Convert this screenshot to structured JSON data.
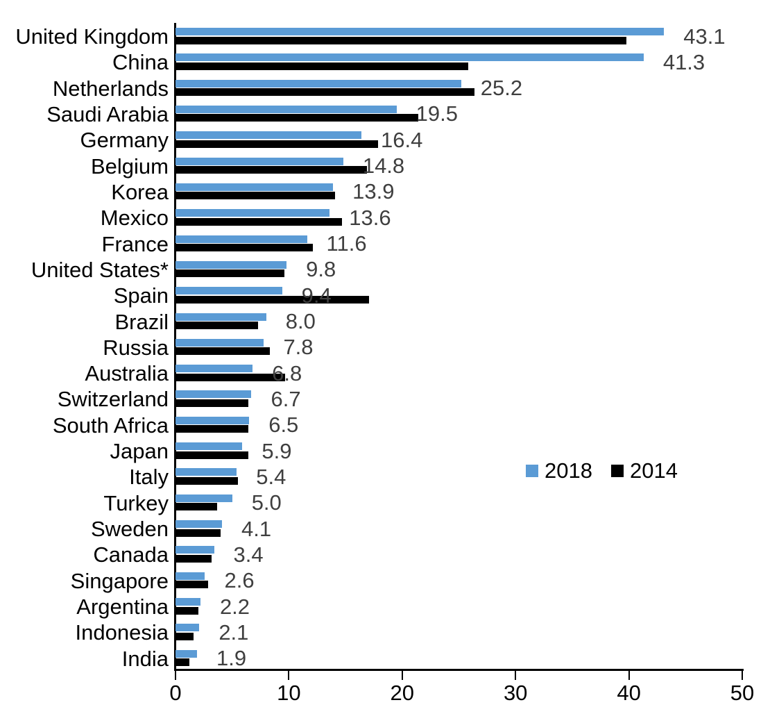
{
  "chart_data": {
    "type": "bar",
    "orientation": "horizontal",
    "title": "",
    "xlabel": "",
    "ylabel": "",
    "xlim": [
      0,
      50
    ],
    "x_ticks": [
      0,
      10,
      20,
      30,
      40,
      50
    ],
    "grid": false,
    "legend_position": "middle-right",
    "categories": [
      "United Kingdom",
      "China",
      "Netherlands",
      "Saudi Arabia",
      "Germany",
      "Belgium",
      "Korea",
      "Mexico",
      "France",
      "United States*",
      "Spain",
      "Brazil",
      "Russia",
      "Australia",
      "Switzerland",
      "South Africa",
      "Japan",
      "Italy",
      "Turkey",
      "Sweden",
      "Canada",
      "Singapore",
      "Argentina",
      "Indonesia",
      "India"
    ],
    "series": [
      {
        "name": "2018",
        "color": "#5B9BD5",
        "values": [
          43.1,
          41.3,
          25.2,
          19.5,
          16.4,
          14.8,
          13.9,
          13.6,
          11.6,
          9.8,
          9.4,
          8.0,
          7.8,
          6.8,
          6.7,
          6.5,
          5.9,
          5.4,
          5.0,
          4.1,
          3.4,
          2.6,
          2.2,
          2.1,
          1.9
        ]
      },
      {
        "name": "2014",
        "color": "#000000",
        "values": [
          39.8,
          25.8,
          26.4,
          21.4,
          17.9,
          16.9,
          14.1,
          14.7,
          12.1,
          9.6,
          17.1,
          7.3,
          8.3,
          9.7,
          6.4,
          6.4,
          6.4,
          5.5,
          3.7,
          4.0,
          3.2,
          2.9,
          2.0,
          1.6,
          1.2
        ]
      }
    ],
    "data_labels": [
      "43.1",
      "41.3",
      "25.2",
      "19.5",
      "16.4",
      "14.8",
      "13.9",
      "13.6",
      "11.6",
      "9.8",
      "9.4",
      "8.0",
      "7.8",
      "6.8",
      "6.7",
      "6.5",
      "5.9",
      "5.4",
      "5.0",
      "4.1",
      "3.4",
      "2.6",
      "2.2",
      "2.1",
      "1.9"
    ],
    "data_label_series": "2018",
    "data_label_color": "#3f3f3f"
  },
  "legend": {
    "items": [
      {
        "label": "2018",
        "color": "#5B9BD5"
      },
      {
        "label": "2014",
        "color": "#000000"
      }
    ]
  }
}
